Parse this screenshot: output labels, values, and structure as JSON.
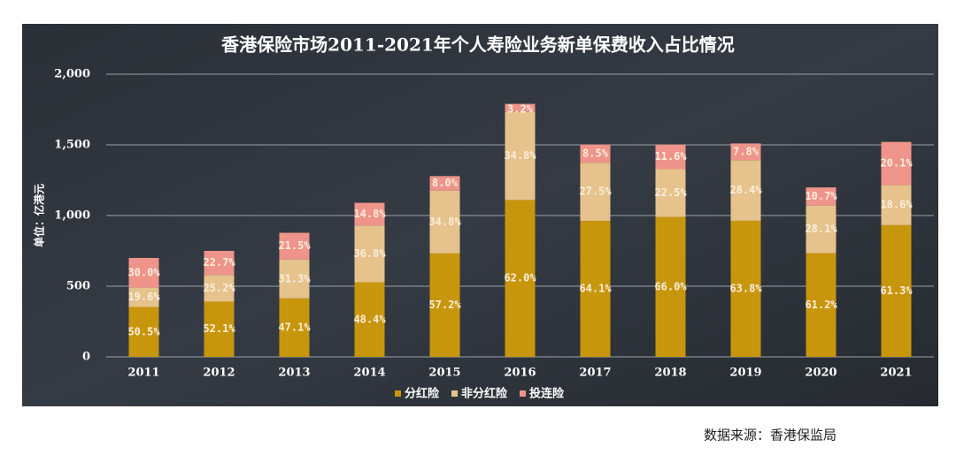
{
  "chart_data": {
    "type": "stacked_bar",
    "title": "香港保险市场2011-2021年个人寿险业务新单保费收入占比情况",
    "y_label": "单位：亿港元",
    "source": "数据来源：香港保监局",
    "categories": [
      "2011",
      "2012",
      "2013",
      "2014",
      "2015",
      "2016",
      "2017",
      "2018",
      "2019",
      "2020",
      "2021"
    ],
    "series": [
      {
        "name": "分红险",
        "color": "#c8960c",
        "values": [
          353,
          391,
          414,
          528,
          732,
          1110,
          962,
          990,
          963,
          734,
          932
        ],
        "percent_labels": [
          "50.5%",
          "52.1%",
          "47.1%",
          "48.4%",
          "57.2%",
          "62.0%",
          "64.1%",
          "66.0%",
          "63.8%",
          "61.2%",
          "61.3%"
        ]
      },
      {
        "name": "非分红险",
        "color": "#e6c28c",
        "values": [
          137,
          189,
          275,
          401,
          445,
          623,
          412,
          338,
          429,
          337,
          283
        ],
        "percent_labels": [
          "19.6%",
          "25.2%",
          "31.3%",
          "36.8%",
          "34.8%",
          "34.8%",
          "27.5%",
          "22.5%",
          "28.4%",
          "28.1%",
          "18.6%"
        ]
      },
      {
        "name": "投连险",
        "color": "#ee948a",
        "values": [
          210,
          170,
          189,
          161,
          102,
          57,
          128,
          174,
          118,
          128,
          306
        ],
        "percent_labels": [
          "30.0%",
          "22.7%",
          "21.5%",
          "14.8%",
          "8.0%",
          "3.2%",
          "8.5%",
          "11.6%",
          "7.8%",
          "10.7%",
          "20.1%"
        ]
      }
    ],
    "ylim": [
      0,
      2000
    ],
    "yticks": [
      0,
      500,
      {
        "value": 1000,
        "label": "1,000"
      },
      {
        "value": 1500,
        "label": "1,500"
      },
      {
        "value": 2000,
        "label": "2,000"
      }
    ],
    "grid": true
  }
}
